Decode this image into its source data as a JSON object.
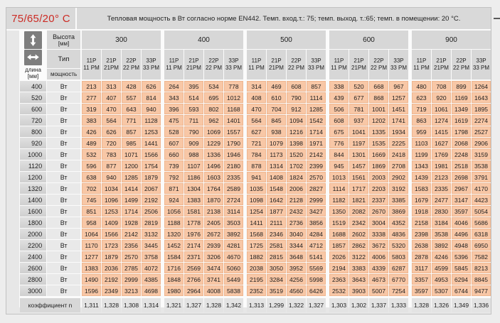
{
  "title": "75/65/20° C",
  "description": "Тепловая мощность в Вт согласно норме EN442. Темп. вход.т.: 75; темп. выход. т.:65; темп. в помещении: 20 °С.",
  "labels": {
    "height": [
      "Высота",
      "[мм]"
    ],
    "length": [
      "длина",
      "[мм]"
    ],
    "type": "Тип",
    "power": "мощность",
    "unit": "Вт",
    "coefficient": "коэффициент n"
  },
  "icons": {
    "height_arrow": "vertical-double-arrow-icon",
    "length_arrow": "horizontal-double-arrow-icon"
  },
  "colors": {
    "accent_red": "#cc2a23",
    "cell_salmon": "#f8c7a6",
    "header_gray": "#d7d7d7"
  },
  "heights": [
    "300",
    "400",
    "500",
    "600",
    "900"
  ],
  "types": [
    [
      "11P",
      "11 PM"
    ],
    [
      "21P",
      "21PM"
    ],
    [
      "22P",
      "22 PM"
    ],
    [
      "33P",
      "33 PM"
    ]
  ],
  "rows": [
    {
      "length": "400",
      "values": [
        213,
        313,
        428,
        626,
        264,
        395,
        534,
        778,
        314,
        469,
        608,
        857,
        338,
        520,
        668,
        967,
        480,
        708,
        899,
        1264
      ]
    },
    {
      "length": "520",
      "values": [
        277,
        407,
        557,
        814,
        343,
        514,
        695,
        1012,
        408,
        610,
        790,
        1114,
        439,
        677,
        868,
        1257,
        623,
        920,
        1169,
        1643
      ]
    },
    {
      "length": "600",
      "values": [
        319,
        470,
        643,
        940,
        396,
        593,
        802,
        1168,
        470,
        704,
        912,
        1285,
        506,
        781,
        1001,
        1451,
        719,
        1061,
        1349,
        1895
      ]
    },
    {
      "length": "720",
      "values": [
        383,
        564,
        771,
        1128,
        475,
        711,
        962,
        1401,
        564,
        845,
        1094,
        1542,
        608,
        937,
        1202,
        1741,
        863,
        1274,
        1619,
        2274
      ]
    },
    {
      "length": "800",
      "values": [
        426,
        626,
        857,
        1253,
        528,
        790,
        1069,
        1557,
        627,
        938,
        1216,
        1714,
        675,
        1041,
        1335,
        1934,
        959,
        1415,
        1798,
        2527
      ]
    },
    {
      "length": "920",
      "values": [
        489,
        720,
        985,
        1441,
        607,
        909,
        1229,
        1790,
        721,
        1079,
        1398,
        1971,
        776,
        1197,
        1535,
        2225,
        1103,
        1627,
        2068,
        2906
      ]
    },
    {
      "length": "1000",
      "values": [
        532,
        783,
        1071,
        1566,
        660,
        988,
        1336,
        1946,
        784,
        1173,
        1520,
        2142,
        844,
        1301,
        1669,
        2418,
        1199,
        1769,
        2248,
        3159
      ]
    },
    {
      "length": "1120",
      "values": [
        596,
        877,
        1200,
        1754,
        739,
        1107,
        1496,
        2180,
        878,
        1314,
        1702,
        2399,
        945,
        1457,
        1869,
        2708,
        1343,
        1981,
        2518,
        3538
      ]
    },
    {
      "length": "1200",
      "values": [
        638,
        940,
        1285,
        1879,
        792,
        1186,
        1603,
        2335,
        941,
        1408,
        1824,
        2570,
        1013,
        1561,
        2003,
        2902,
        1439,
        2123,
        2698,
        3791
      ]
    },
    {
      "length": "1320",
      "values": [
        702,
        1034,
        1414,
        2067,
        871,
        1304,
        1764,
        2589,
        1035,
        1548,
        2006,
        2827,
        1114,
        1717,
        2203,
        3192,
        1583,
        2335,
        2967,
        4170
      ]
    },
    {
      "length": "1400",
      "values": [
        745,
        1096,
        1499,
        2192,
        924,
        1383,
        1870,
        2724,
        1098,
        1642,
        2128,
        2999,
        1182,
        1821,
        2337,
        3385,
        1679,
        2477,
        3147,
        4423
      ]
    },
    {
      "length": "1600",
      "values": [
        851,
        1253,
        1714,
        2506,
        1056,
        1581,
        2138,
        3114,
        1254,
        1877,
        2432,
        3427,
        1350,
        2082,
        2670,
        3869,
        1918,
        2830,
        3597,
        5054
      ]
    },
    {
      "length": "1800",
      "values": [
        958,
        1409,
        1928,
        2819,
        1188,
        1778,
        2405,
        3503,
        1411,
        2111,
        2736,
        3856,
        1519,
        2342,
        3004,
        4352,
        2158,
        3184,
        4046,
        5686
      ]
    },
    {
      "length": "2000",
      "values": [
        1064,
        1566,
        2142,
        3132,
        1320,
        1976,
        2672,
        3892,
        1568,
        2346,
        3040,
        4284,
        1688,
        2602,
        3338,
        4836,
        2398,
        3538,
        4496,
        6318
      ]
    },
    {
      "length": "2200",
      "values": [
        1170,
        1723,
        2356,
        3445,
        1452,
        2174,
        2939,
        4281,
        1725,
        2581,
        3344,
        4712,
        1857,
        2862,
        3672,
        5320,
        2638,
        3892,
        4948,
        6950
      ]
    },
    {
      "length": "2400",
      "values": [
        1277,
        1879,
        2570,
        3758,
        1584,
        2371,
        3206,
        4670,
        1882,
        2815,
        3648,
        5141,
        2026,
        3122,
        4006,
        5803,
        2878,
        4246,
        5396,
        7582
      ]
    },
    {
      "length": "2600",
      "values": [
        1383,
        2036,
        2785,
        4072,
        1716,
        2569,
        3474,
        5060,
        2038,
        3050,
        3952,
        5569,
        2194,
        3383,
        4339,
        6287,
        3117,
        4599,
        5845,
        8213
      ]
    },
    {
      "length": "2800",
      "values": [
        1490,
        2192,
        2999,
        4385,
        1848,
        2766,
        3741,
        5449,
        2195,
        3284,
        4256,
        5998,
        2363,
        3643,
        4673,
        6770,
        3357,
        4953,
        6294,
        8845
      ]
    },
    {
      "length": "3000",
      "values": [
        1596,
        2349,
        3213,
        4698,
        1980,
        2964,
        4008,
        5838,
        2352,
        3519,
        4560,
        6426,
        2532,
        3903,
        5007,
        7254,
        3597,
        5307,
        6744,
        9477
      ]
    }
  ],
  "coefficients": [
    "1,311",
    "1,328",
    "1,308",
    "1,314",
    "1,321",
    "1,327",
    "1,328",
    "1,342",
    "1,313",
    "1,299",
    "1,322",
    "1,327",
    "1,303",
    "1,302",
    "1,337",
    "1,333",
    "1,328",
    "1,326",
    "1,349",
    "1,336"
  ]
}
